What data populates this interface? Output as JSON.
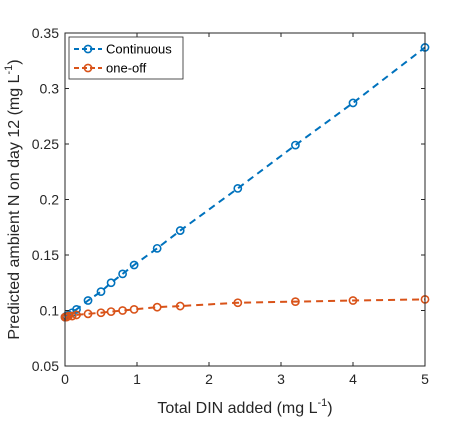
{
  "chart_data": {
    "type": "line",
    "xlabel": "Total DIN added (mg L",
    "xlabel_sup": "-1",
    "xlabel_end": ")",
    "ylabel": "Predicted ambient N on day 12 (mg L",
    "ylabel_sup": "-1",
    "ylabel_end": ")",
    "xlim": [
      0,
      5
    ],
    "ylim": [
      0.05,
      0.35
    ],
    "xticks": [
      "0",
      "1",
      "2",
      "3",
      "4",
      "5"
    ],
    "yticks": [
      "0.05",
      "0.1",
      "0.15",
      "0.2",
      "0.25",
      "0.3",
      "0.35"
    ],
    "legend_position": "top-left",
    "grid": false,
    "series": [
      {
        "name": "Continuous",
        "color": "#0072BD",
        "x": [
          0,
          0.02,
          0.05,
          0.1,
          0.16,
          0.32,
          0.5,
          0.64,
          0.8,
          0.96,
          1.28,
          1.6,
          2.4,
          3.2,
          4.0,
          5.0
        ],
        "y": [
          0.094,
          0.095,
          0.096,
          0.098,
          0.101,
          0.109,
          0.117,
          0.125,
          0.133,
          0.141,
          0.156,
          0.172,
          0.21,
          0.249,
          0.287,
          0.337
        ]
      },
      {
        "name": "one-off",
        "color": "#D95319",
        "x": [
          0,
          0.02,
          0.05,
          0.1,
          0.16,
          0.32,
          0.5,
          0.64,
          0.8,
          0.96,
          1.28,
          1.6,
          2.4,
          3.2,
          4.0,
          5.0
        ],
        "y": [
          0.094,
          0.094,
          0.095,
          0.095,
          0.096,
          0.097,
          0.098,
          0.099,
          0.1,
          0.101,
          0.103,
          0.104,
          0.107,
          0.108,
          0.109,
          0.11
        ]
      }
    ]
  }
}
